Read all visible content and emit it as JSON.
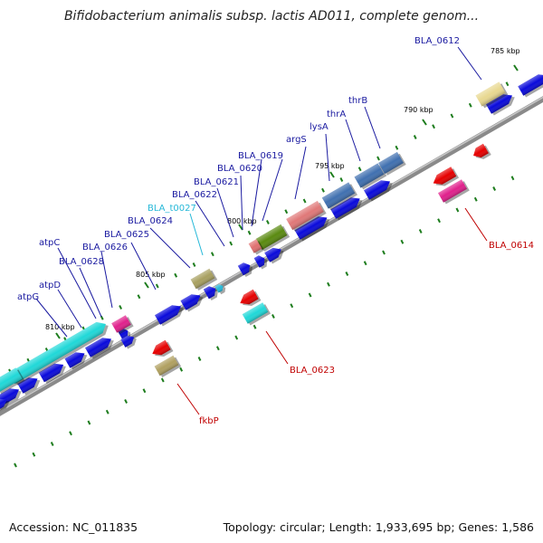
{
  "header": {
    "title": "Bifidobacterium animalis subsp. lactis AD011, complete genom..."
  },
  "footer": {
    "accession": "Accession: NC_011835",
    "summary": "Topology: circular; Length: 1,933,695 bp; Genes: 1,586"
  },
  "colors": {
    "cds_strand": "#0a0adb",
    "rna_gene": "#e60000",
    "atp_operon": "#20d8d8",
    "label_default": "#1a1aa0",
    "label_rna": "#c00000",
    "label_trna": "#26b8d8",
    "backbone": "#8a8a8a",
    "ticks": "#1e7d1e"
  },
  "scale_marks": [
    "810 kbp",
    "805 kbp",
    "800 kbp",
    "795 kbp",
    "790 kbp",
    "785 kbp"
  ],
  "gene_labels_forward": [
    "atpG",
    "atpD",
    "BLA_0628",
    "atpC",
    "BLA_0626",
    "BLA_0625",
    "BLA_0624",
    "BLA_t0027",
    "BLA_0622",
    "BLA_0621",
    "BLA_0620",
    "BLA_0619",
    "argS",
    "lysA",
    "thrA",
    "thrB",
    "BLA_0612"
  ],
  "gene_labels_reverse": [
    "fkbP",
    "BLA_0623",
    "BLA_0614"
  ]
}
